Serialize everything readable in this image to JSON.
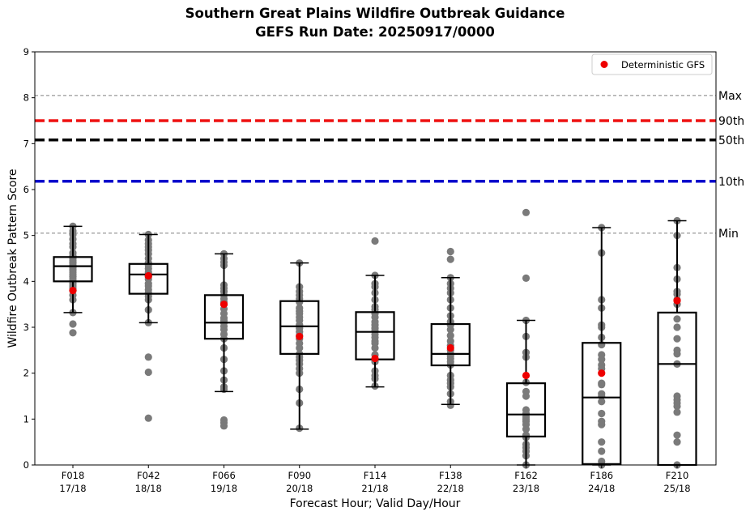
{
  "chart_data": {
    "type": "box",
    "title": "Southern Great Plains Wildfire Outbreak Guidance",
    "subtitle": "GEFS Run Date: 20250917/0000",
    "xlabel": "Forecast Hour; Valid Day/Hour",
    "ylabel": "Wildfire Outbreak Pattern Score",
    "ylim": [
      0,
      9
    ],
    "yticks": [
      0,
      1,
      2,
      3,
      4,
      5,
      6,
      7,
      8,
      9
    ],
    "legend": {
      "placement": "top-right",
      "entries": [
        {
          "label": "Deterministic GFS",
          "color": "#ee0000"
        }
      ]
    },
    "reference_lines": [
      {
        "label": "Max",
        "value": 8.05,
        "color": "#808080",
        "style": "dashed-thin"
      },
      {
        "label": "90th",
        "value": 7.5,
        "color": "#ee1111",
        "style": "dashed-thick"
      },
      {
        "label": "50th",
        "value": 7.08,
        "color": "#000000",
        "style": "dashed-thick"
      },
      {
        "label": "10th",
        "value": 6.18,
        "color": "#0000cc",
        "style": "dashed-thick"
      },
      {
        "label": "Min",
        "value": 5.05,
        "color": "#808080",
        "style": "dashed-thin"
      }
    ],
    "categories": [
      {
        "hour": "F018",
        "valid": "17/18"
      },
      {
        "hour": "F042",
        "valid": "18/18"
      },
      {
        "hour": "F066",
        "valid": "19/18"
      },
      {
        "hour": "F090",
        "valid": "20/18"
      },
      {
        "hour": "F114",
        "valid": "21/18"
      },
      {
        "hour": "F138",
        "valid": "22/18"
      },
      {
        "hour": "F162",
        "valid": "23/18"
      },
      {
        "hour": "F186",
        "valid": "24/18"
      },
      {
        "hour": "F210",
        "valid": "25/18"
      }
    ],
    "boxes": [
      {
        "whisker_low": 3.32,
        "q1": 4.0,
        "median": 4.33,
        "q3": 4.53,
        "whisker_high": 5.2
      },
      {
        "whisker_low": 3.1,
        "q1": 3.73,
        "median": 4.15,
        "q3": 4.38,
        "whisker_high": 5.02
      },
      {
        "whisker_low": 1.6,
        "q1": 2.75,
        "median": 3.1,
        "q3": 3.7,
        "whisker_high": 4.6
      },
      {
        "whisker_low": 0.78,
        "q1": 2.42,
        "median": 3.02,
        "q3": 3.57,
        "whisker_high": 4.4
      },
      {
        "whisker_low": 1.7,
        "q1": 2.3,
        "median": 2.9,
        "q3": 3.33,
        "whisker_high": 4.13
      },
      {
        "whisker_low": 1.32,
        "q1": 2.17,
        "median": 2.42,
        "q3": 3.07,
        "whisker_high": 4.08
      },
      {
        "whisker_low": 0.0,
        "q1": 0.62,
        "median": 1.1,
        "q3": 1.78,
        "whisker_high": 3.15
      },
      {
        "whisker_low": 0.0,
        "q1": 0.02,
        "median": 1.47,
        "q3": 2.66,
        "whisker_high": 5.17
      },
      {
        "whisker_low": 0.0,
        "q1": 0.0,
        "median": 2.2,
        "q3": 3.32,
        "whisker_high": 5.32
      }
    ],
    "members": [
      [
        5.2,
        5.1,
        5.02,
        4.92,
        4.82,
        4.75,
        4.62,
        4.55,
        4.5,
        4.45,
        4.4,
        4.35,
        4.3,
        4.25,
        4.2,
        4.15,
        4.1,
        4.05,
        4.0,
        3.95,
        3.9,
        3.85,
        3.8,
        3.7,
        3.6,
        3.32,
        3.07,
        2.88
      ],
      [
        5.02,
        4.9,
        4.82,
        4.75,
        4.68,
        4.6,
        4.5,
        4.4,
        4.35,
        4.28,
        4.2,
        4.15,
        4.1,
        4.05,
        3.95,
        3.9,
        3.82,
        3.75,
        3.68,
        3.6,
        3.38,
        3.1,
        2.35,
        2.02,
        1.02
      ],
      [
        4.6,
        4.5,
        4.42,
        4.35,
        3.92,
        3.85,
        3.78,
        3.7,
        3.62,
        3.55,
        3.5,
        3.4,
        3.3,
        3.2,
        3.15,
        3.1,
        3.02,
        2.95,
        2.85,
        2.75,
        2.55,
        2.3,
        2.05,
        1.85,
        1.7,
        1.65,
        0.98,
        0.92,
        0.85
      ],
      [
        4.4,
        3.88,
        3.78,
        3.7,
        3.62,
        3.55,
        3.42,
        3.35,
        3.3,
        3.22,
        3.15,
        3.05,
        2.98,
        2.9,
        2.82,
        2.75,
        2.65,
        2.55,
        2.42,
        2.35,
        2.28,
        2.2,
        2.1,
        2.0,
        1.65,
        1.35,
        0.8
      ],
      [
        4.88,
        4.13,
        3.95,
        3.88,
        3.75,
        3.6,
        3.45,
        3.38,
        3.3,
        3.22,
        3.12,
        3.05,
        2.98,
        2.92,
        2.85,
        2.78,
        2.7,
        2.65,
        2.55,
        2.4,
        2.3,
        2.25,
        2.05,
        1.95,
        1.88,
        1.72
      ],
      [
        4.65,
        4.48,
        4.08,
        3.95,
        3.85,
        3.75,
        3.6,
        3.42,
        3.25,
        3.12,
        3.05,
        2.95,
        2.82,
        2.7,
        2.6,
        2.5,
        2.42,
        2.38,
        2.32,
        2.25,
        2.18,
        1.95,
        1.85,
        1.78,
        1.7,
        1.55,
        1.38,
        1.3
      ],
      [
        5.5,
        4.07,
        3.15,
        2.8,
        2.45,
        2.35,
        1.8,
        1.6,
        1.5,
        1.2,
        1.12,
        1.05,
        1.0,
        0.95,
        0.88,
        0.78,
        0.65,
        0.6,
        0.45,
        0.38,
        0.3,
        0.2,
        0.0
      ],
      [
        5.17,
        4.62,
        3.6,
        3.42,
        3.05,
        3.0,
        2.78,
        2.62,
        2.4,
        2.3,
        2.18,
        2.1,
        1.78,
        1.75,
        1.55,
        1.5,
        1.38,
        1.12,
        0.95,
        0.88,
        0.5,
        0.3,
        0.08,
        0.0
      ],
      [
        5.32,
        5.0,
        4.3,
        4.05,
        3.78,
        3.72,
        3.6,
        3.5,
        3.18,
        3.0,
        2.75,
        2.5,
        2.42,
        2.2,
        2.2,
        1.5,
        1.42,
        1.35,
        1.28,
        1.15,
        0.65,
        0.5,
        0.0
      ]
    ],
    "deterministic": [
      3.8,
      4.12,
      3.5,
      2.8,
      2.32,
      2.55,
      1.95,
      2.0,
      3.58
    ]
  }
}
